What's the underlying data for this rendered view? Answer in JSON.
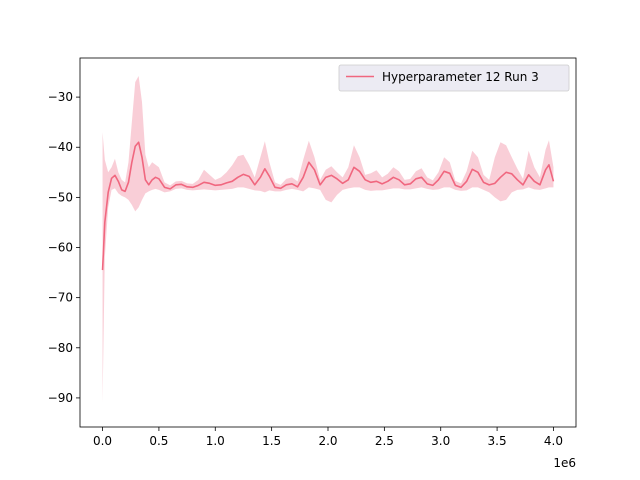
{
  "chart_data": {
    "type": "line",
    "title": "",
    "xlabel": "",
    "ylabel": "",
    "x_offset_label": "1e6",
    "xlim": [
      -200000,
      4200000
    ],
    "ylim": [
      -95.8,
      -22.2
    ],
    "x_ticks": [
      0,
      500000,
      1000000,
      1500000,
      2000000,
      2500000,
      3000000,
      3500000,
      4000000
    ],
    "x_tick_labels": [
      "0.0",
      "0.5",
      "1.0",
      "1.5",
      "2.0",
      "2.5",
      "3.0",
      "3.5",
      "4.0"
    ],
    "y_ticks": [
      -90,
      -80,
      -70,
      -60,
      -50,
      -40,
      -30
    ],
    "y_tick_labels": [
      "−90",
      "−80",
      "−70",
      "−60",
      "−50",
      "−40",
      "−30"
    ],
    "grid": false,
    "legend_position": "top-right",
    "series": [
      {
        "name": "Hyperparameter 12 Run 3",
        "color": "#f0677f",
        "band_color": "#f4a6b6",
        "x": [
          0,
          20000,
          50000,
          80000,
          110000,
          140000,
          170000,
          200000,
          230000,
          260000,
          290000,
          320000,
          350000,
          380000,
          410000,
          440000,
          470000,
          500000,
          550000,
          600000,
          650000,
          700000,
          750000,
          800000,
          850000,
          900000,
          950000,
          1000000,
          1050000,
          1100000,
          1150000,
          1200000,
          1250000,
          1300000,
          1350000,
          1400000,
          1440000,
          1480000,
          1530000,
          1580000,
          1630000,
          1680000,
          1730000,
          1780000,
          1830000,
          1880000,
          1930000,
          1980000,
          2030000,
          2080000,
          2130000,
          2180000,
          2230000,
          2280000,
          2330000,
          2380000,
          2430000,
          2480000,
          2530000,
          2580000,
          2630000,
          2680000,
          2730000,
          2780000,
          2830000,
          2880000,
          2930000,
          2980000,
          3030000,
          3080000,
          3130000,
          3180000,
          3230000,
          3280000,
          3330000,
          3380000,
          3430000,
          3480000,
          3530000,
          3580000,
          3630000,
          3680000,
          3730000,
          3780000,
          3830000,
          3880000,
          3930000,
          3960000,
          4000000
        ],
        "mean": [
          -64.5,
          -55.0,
          -49.0,
          -46.2,
          -45.6,
          -46.8,
          -48.5,
          -48.8,
          -47.0,
          -43.0,
          -39.8,
          -39.0,
          -42.0,
          -46.5,
          -47.5,
          -46.5,
          -46.0,
          -46.3,
          -48.0,
          -48.3,
          -47.5,
          -47.4,
          -47.9,
          -48.0,
          -47.6,
          -47.0,
          -47.2,
          -47.6,
          -47.5,
          -47.1,
          -46.8,
          -46.0,
          -45.4,
          -45.8,
          -47.5,
          -46.0,
          -44.3,
          -45.8,
          -48.0,
          -48.2,
          -47.5,
          -47.3,
          -47.9,
          -46.0,
          -43.0,
          -44.5,
          -47.5,
          -46.0,
          -45.6,
          -46.3,
          -47.2,
          -46.5,
          -44.0,
          -44.8,
          -46.5,
          -47.0,
          -46.8,
          -47.3,
          -46.8,
          -46.0,
          -46.5,
          -47.5,
          -47.3,
          -46.3,
          -46.0,
          -47.3,
          -47.6,
          -46.5,
          -44.8,
          -45.2,
          -47.6,
          -48.0,
          -46.8,
          -44.4,
          -45.0,
          -47.0,
          -47.5,
          -47.2,
          -46.0,
          -45.0,
          -45.3,
          -46.5,
          -47.5,
          -45.5,
          -46.8,
          -47.5,
          -44.5,
          -43.5,
          -46.8
        ],
        "lower": [
          -91.0,
          -62.0,
          -52.0,
          -48.5,
          -48.2,
          -49.2,
          -49.7,
          -50.0,
          -50.5,
          -51.5,
          -52.8,
          -52.0,
          -50.5,
          -49.2,
          -48.8,
          -48.5,
          -48.3,
          -48.5,
          -49.0,
          -48.8,
          -48.3,
          -48.2,
          -48.5,
          -48.6,
          -48.5,
          -48.4,
          -48.5,
          -48.6,
          -48.5,
          -48.4,
          -48.3,
          -48.0,
          -48.0,
          -48.3,
          -48.6,
          -48.7,
          -49.0,
          -48.6,
          -48.8,
          -48.8,
          -48.5,
          -48.3,
          -48.5,
          -48.8,
          -48.0,
          -48.2,
          -48.5,
          -50.5,
          -51.0,
          -49.5,
          -48.5,
          -48.2,
          -48.0,
          -48.0,
          -48.5,
          -48.7,
          -48.6,
          -48.6,
          -48.4,
          -48.2,
          -48.2,
          -48.4,
          -48.4,
          -48.2,
          -48.0,
          -48.3,
          -48.5,
          -48.4,
          -48.0,
          -48.0,
          -48.5,
          -48.7,
          -48.6,
          -48.0,
          -48.0,
          -48.5,
          -49.0,
          -50.0,
          -50.8,
          -50.5,
          -49.0,
          -48.5,
          -48.4,
          -48.0,
          -48.4,
          -48.5,
          -48.2,
          -48.0,
          -48.0
        ],
        "upper": [
          -37.0,
          -42.5,
          -45.0,
          -44.0,
          -42.3,
          -45.0,
          -46.5,
          -47.0,
          -43.0,
          -35.0,
          -27.0,
          -25.8,
          -31.0,
          -41.5,
          -44.0,
          -43.0,
          -43.5,
          -44.0,
          -47.0,
          -47.6,
          -46.8,
          -46.7,
          -47.2,
          -47.3,
          -46.5,
          -44.5,
          -45.5,
          -46.5,
          -46.0,
          -45.0,
          -43.6,
          -41.8,
          -41.5,
          -43.5,
          -46.0,
          -42.0,
          -38.8,
          -43.0,
          -47.0,
          -47.5,
          -46.3,
          -46.0,
          -46.8,
          -42.5,
          -38.7,
          -42.0,
          -46.5,
          -44.5,
          -43.8,
          -45.0,
          -46.0,
          -44.0,
          -39.6,
          -42.0,
          -45.5,
          -45.2,
          -44.6,
          -46.0,
          -45.3,
          -44.0,
          -44.8,
          -46.5,
          -46.3,
          -44.8,
          -44.2,
          -46.0,
          -46.6,
          -45.0,
          -42.0,
          -43.0,
          -46.7,
          -47.2,
          -44.8,
          -40.7,
          -42.0,
          -45.5,
          -46.5,
          -42.0,
          -39.0,
          -39.6,
          -42.0,
          -44.3,
          -46.3,
          -40.7,
          -44.0,
          -46.0,
          -40.5,
          -38.6,
          -44.0
        ]
      }
    ]
  }
}
